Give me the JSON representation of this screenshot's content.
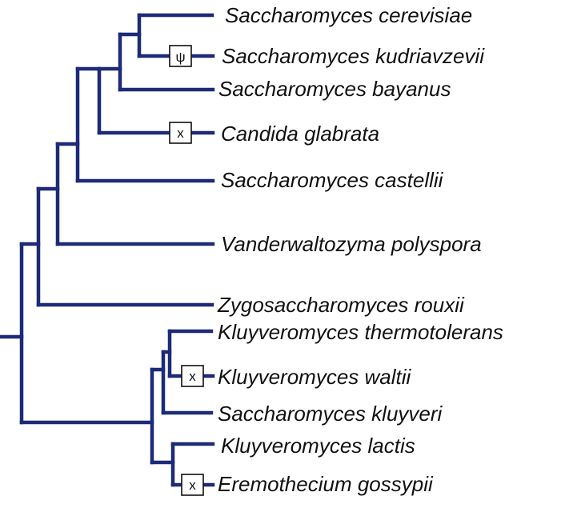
{
  "colors": {
    "branch": "#1c2a78",
    "text": "#111111",
    "background": "#ffffff"
  },
  "taxa": [
    {
      "name": "Saccharomyces cerevisiae",
      "marker": null
    },
    {
      "name": "Saccharomyces kudriavzevii",
      "marker": "ψ"
    },
    {
      "name": "Saccharomyces bayanus",
      "marker": null
    },
    {
      "name": "Candida glabrata",
      "marker": "x"
    },
    {
      "name": "Saccharomyces castellii",
      "marker": null
    },
    {
      "name": "Vanderwaltozyma polyspora",
      "marker": null
    },
    {
      "name": "Zygosaccharomyces rouxii",
      "marker": null
    },
    {
      "name": "Kluyveromyces thermotolerans",
      "marker": null
    },
    {
      "name": "Kluyveromyces waltii",
      "marker": "x"
    },
    {
      "name": "Saccharomyces kluyveri",
      "marker": null
    },
    {
      "name": "Kluyveromyces lactis",
      "marker": null
    },
    {
      "name": "Eremothecium gossypii",
      "marker": "x"
    }
  ]
}
